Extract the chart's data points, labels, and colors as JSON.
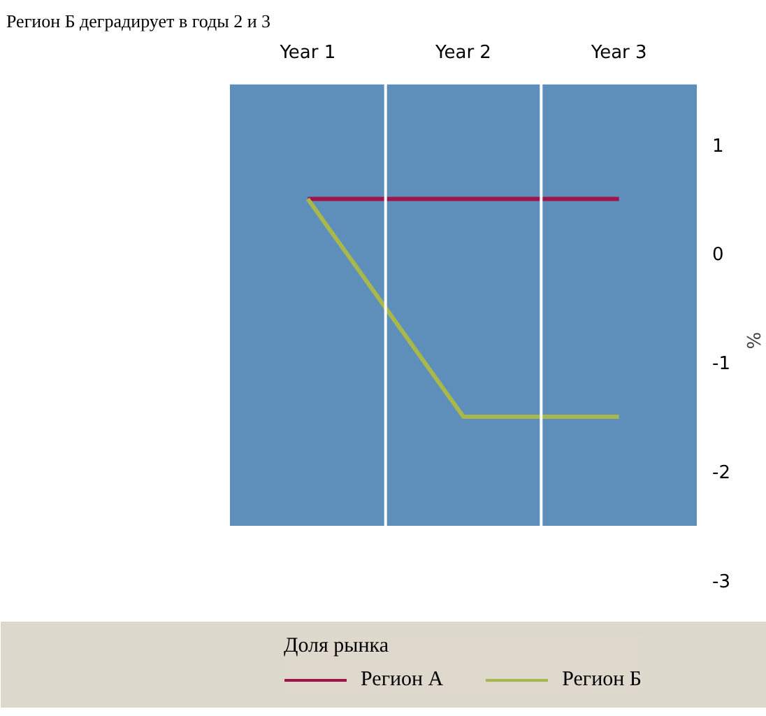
{
  "chart_data": {
    "type": "line",
    "title": "Регион Б деградирует в годы 2 и 3",
    "ylabel": "%",
    "legend_title": "Доля рынка",
    "categories": [
      "Year 1",
      "Year 2",
      "Year 3"
    ],
    "ylim": [
      -3.2,
      1.6
    ],
    "yticks": [
      1,
      0,
      -1,
      -2,
      -3
    ],
    "series": [
      {
        "name": "Регион А",
        "color": "#a0144a",
        "values": [
          0.5,
          0.5,
          0.5
        ]
      },
      {
        "name": "Регион Б",
        "color": "#a8b84a",
        "values": [
          0.5,
          -1.5,
          -1.5
        ]
      }
    ],
    "bands": [
      {
        "axis": "y",
        "from": -2.5,
        "to": 1.55,
        "color": "#5e8fba"
      }
    ],
    "grid": false,
    "legend": "bottom",
    "line_style": "solid",
    "marker": "none"
  }
}
